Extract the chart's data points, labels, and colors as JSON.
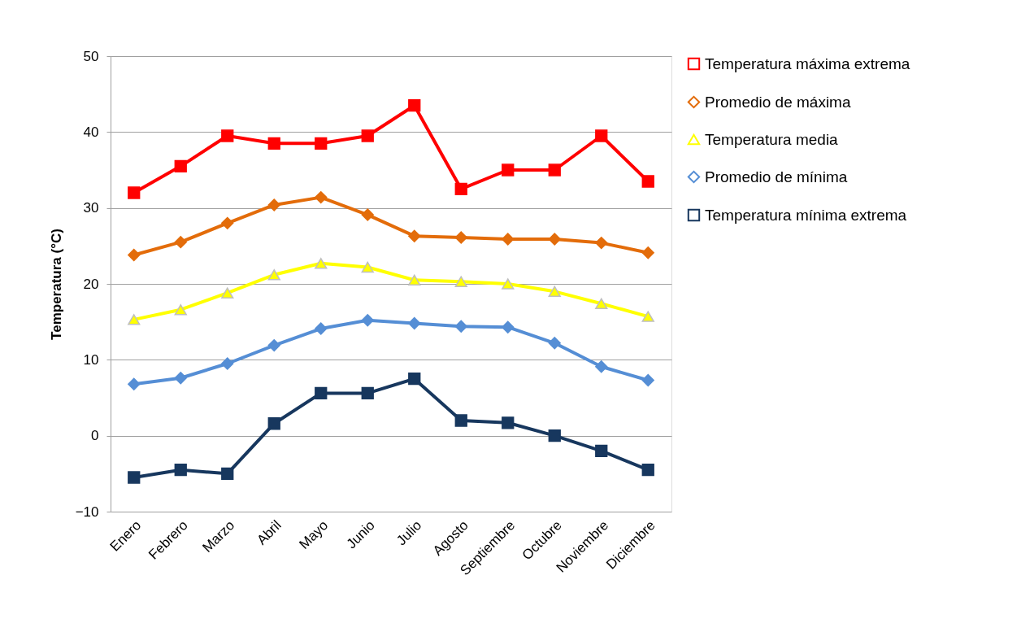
{
  "chart_data": {
    "type": "line",
    "ylabel": "Temperatura (°C)",
    "categories": [
      "Enero",
      "Febrero",
      "Marzo",
      "Abril",
      "Mayo",
      "Junio",
      "Julio",
      "Agosto",
      "Septiembre",
      "Octubre",
      "Noviembre",
      "Diciembre"
    ],
    "ylim": [
      -10,
      50
    ],
    "yticks": [
      -10,
      0,
      10,
      20,
      30,
      40,
      50
    ],
    "grid": "y",
    "legend": "right",
    "series": [
      {
        "name": "Temperatura máxima extrema",
        "color": "#ff0000",
        "marker": "square",
        "values": [
          32,
          35.5,
          39.5,
          38.5,
          38.5,
          39.5,
          43.5,
          32.5,
          35,
          35,
          39.5,
          33.5
        ]
      },
      {
        "name": "Promedio de máxima",
        "color": "#e36c0a",
        "marker": "diamond",
        "values": [
          23.8,
          25.5,
          28,
          30.4,
          31.4,
          29.1,
          26.3,
          26.1,
          25.9,
          25.9,
          25.4,
          24.1
        ]
      },
      {
        "name": "Temperatura media",
        "color": "#ffff00",
        "marker": "triangle",
        "values": [
          15.3,
          16.6,
          18.8,
          21.2,
          22.7,
          22.2,
          20.5,
          20.3,
          20,
          19,
          17.4,
          15.7
        ]
      },
      {
        "name": "Promedio de mínima",
        "color": "#558ed5",
        "marker": "diamond",
        "values": [
          6.8,
          7.6,
          9.5,
          11.9,
          14.1,
          15.2,
          14.8,
          14.4,
          14.3,
          12.2,
          9.1,
          7.3
        ]
      },
      {
        "name": "Temperatura mínima extrema",
        "color": "#17375e",
        "marker": "square",
        "values": [
          -5.5,
          -4.5,
          -5,
          1.6,
          5.6,
          5.6,
          7.5,
          2,
          1.7,
          0,
          -2,
          -4.5
        ]
      }
    ]
  }
}
